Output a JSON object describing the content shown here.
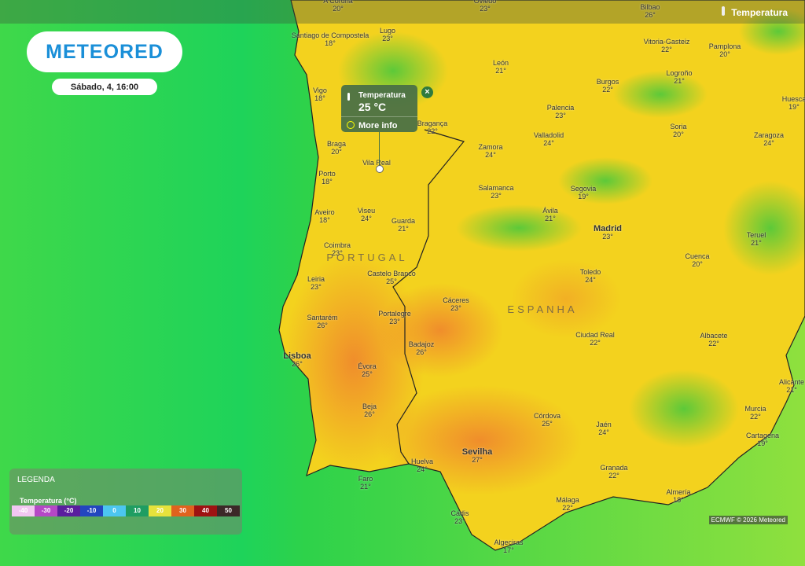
{
  "header": {
    "logo": "METEORED",
    "datetime": "Sábado, 4, 16:00",
    "layer": "Temperatura"
  },
  "popup": {
    "title": "Temperatura",
    "value": "25 °C",
    "link": "More info"
  },
  "countries": [
    "PORTUGAL",
    "ESPANHA"
  ],
  "cities": [
    {
      "name": "A Coruña",
      "temp": "20°"
    },
    {
      "name": "Oviedo",
      "temp": "23°"
    },
    {
      "name": "Bilbao",
      "temp": "26°"
    },
    {
      "name": "Santiago de Compostela",
      "temp": "18°"
    },
    {
      "name": "Lugo",
      "temp": "23°"
    },
    {
      "name": "Vitoria-Gasteiz",
      "temp": "22°"
    },
    {
      "name": "Pamplona",
      "temp": "20°"
    },
    {
      "name": "León",
      "temp": "21°"
    },
    {
      "name": "Logroño",
      "temp": "21°"
    },
    {
      "name": "Vigo",
      "temp": "18°"
    },
    {
      "name": "Burgos",
      "temp": "22°"
    },
    {
      "name": "Huesca",
      "temp": "19°"
    },
    {
      "name": "Palencia",
      "temp": "23°"
    },
    {
      "name": "Bragança",
      "temp": "22°"
    },
    {
      "name": "Soria",
      "temp": "20°"
    },
    {
      "name": "Zaragoza",
      "temp": "24°"
    },
    {
      "name": "Braga",
      "temp": "20°"
    },
    {
      "name": "Valladolid",
      "temp": "24°"
    },
    {
      "name": "Zamora",
      "temp": "24°"
    },
    {
      "name": "Porto",
      "temp": "18°"
    },
    {
      "name": "Salamanca",
      "temp": "23°"
    },
    {
      "name": "Segovia",
      "temp": "19°"
    },
    {
      "name": "Aveiro",
      "temp": "18°"
    },
    {
      "name": "Viseu",
      "temp": "24°"
    },
    {
      "name": "Guarda",
      "temp": "21°"
    },
    {
      "name": "Ávila",
      "temp": "21°"
    },
    {
      "name": "Madrid",
      "temp": "23°"
    },
    {
      "name": "Teruel",
      "temp": "21°"
    },
    {
      "name": "Coimbra",
      "temp": "23°"
    },
    {
      "name": "Cuenca",
      "temp": "20°"
    },
    {
      "name": "Castelo Branco",
      "temp": "25°"
    },
    {
      "name": "Leiria",
      "temp": "23°"
    },
    {
      "name": "Toledo",
      "temp": "24°"
    },
    {
      "name": "Cáceres",
      "temp": "23°"
    },
    {
      "name": "Portalegre",
      "temp": "23°"
    },
    {
      "name": "Santarém",
      "temp": "26°"
    },
    {
      "name": "Ciudad Real",
      "temp": "22°"
    },
    {
      "name": "Albacete",
      "temp": "22°"
    },
    {
      "name": "Badajoz",
      "temp": "26°"
    },
    {
      "name": "Lisboa",
      "temp": "26°"
    },
    {
      "name": "Évora",
      "temp": "25°"
    },
    {
      "name": "Alicante",
      "temp": "21°"
    },
    {
      "name": "Beja",
      "temp": "26°"
    },
    {
      "name": "Murcia",
      "temp": "22°"
    },
    {
      "name": "Córdova",
      "temp": "25°"
    },
    {
      "name": "Jaén",
      "temp": "24°"
    },
    {
      "name": "Cartagena",
      "temp": "19°"
    },
    {
      "name": "Sevilha",
      "temp": "27°"
    },
    {
      "name": "Huelva",
      "temp": "24°"
    },
    {
      "name": "Faro",
      "temp": "21°"
    },
    {
      "name": "Granada",
      "temp": "22°"
    },
    {
      "name": "Almería",
      "temp": "18°"
    },
    {
      "name": "Málaga",
      "temp": "22°"
    },
    {
      "name": "Cádis",
      "temp": "23°"
    },
    {
      "name": "Algeciras",
      "temp": "17°"
    },
    {
      "name": "Vila Real"
    }
  ],
  "legend": {
    "title": "LEGENDA",
    "subtitle": "Temperatura (°C)",
    "scale": [
      -40,
      -30,
      -20,
      -10,
      0,
      10,
      20,
      30,
      40,
      50
    ]
  },
  "attribution": "ECMWF © 2026 Meteored"
}
